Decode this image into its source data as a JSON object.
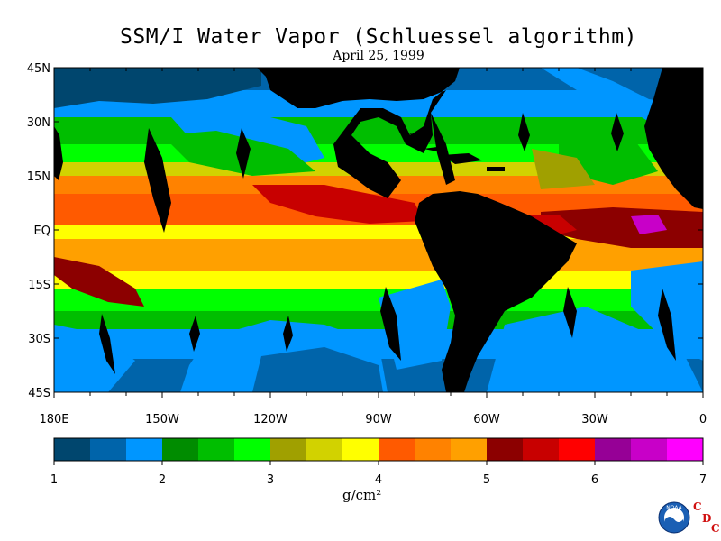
{
  "title": "SSM/I Water Vapor (Schluessel algorithm)",
  "subtitle": "April 25, 1999",
  "y_ticks": [
    {
      "label": "45N",
      "lat": 45
    },
    {
      "label": "30N",
      "lat": 30
    },
    {
      "label": "15N",
      "lat": 15
    },
    {
      "label": "EQ",
      "lat": 0
    },
    {
      "label": "15S",
      "lat": -15
    },
    {
      "label": "30S",
      "lat": -30
    },
    {
      "label": "45S",
      "lat": -45
    }
  ],
  "x_ticks": [
    {
      "label": "180E",
      "lon": -180
    },
    {
      "label": "150W",
      "lon": -150
    },
    {
      "label": "120W",
      "lon": -120
    },
    {
      "label": "90W",
      "lon": -90
    },
    {
      "label": "60W",
      "lon": -60
    },
    {
      "label": "30W",
      "lon": -30
    },
    {
      "label": "0",
      "lon": 0
    }
  ],
  "map_extent": {
    "lon": [
      -180,
      0
    ],
    "lat": [
      -45,
      45
    ]
  },
  "colorbar": {
    "range": [
      1,
      7
    ],
    "tick_labels": [
      "1",
      "2",
      "3",
      "4",
      "5",
      "6",
      "7"
    ],
    "units": "g/cm²",
    "colors": [
      "#00466e",
      "#0064aa",
      "#0096ff",
      "#008c00",
      "#00be00",
      "#00ff00",
      "#a0a000",
      "#d2d200",
      "#ffff00",
      "#ff5a00",
      "#ff8200",
      "#ffa000",
      "#8c0000",
      "#c80000",
      "#ff0000",
      "#960096",
      "#c800c8",
      "#ff00ff"
    ]
  },
  "colors": {
    "land": "#000000",
    "ocean_background": "#00466e",
    "cdc_text": "#d01010"
  },
  "logo": {
    "noaa_text": "NOAA",
    "cdc_letters": [
      "C",
      "D",
      "C"
    ]
  }
}
